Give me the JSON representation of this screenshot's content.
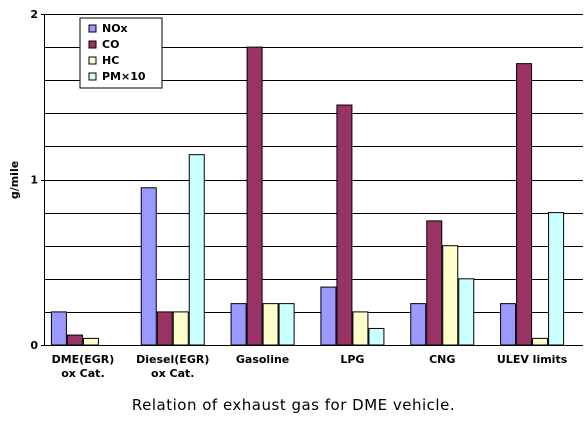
{
  "caption": "Relation of exhaust gas for DME vehicle.",
  "chart_data": {
    "type": "bar",
    "title": "",
    "ylabel": "g/mile",
    "xlabel": "",
    "ylim": [
      0,
      2
    ],
    "yticks": [
      "0",
      "1",
      "2"
    ],
    "categories": [
      [
        "DME(EGR)",
        "ox Cat."
      ],
      [
        "Diesel(EGR)",
        "ox Cat."
      ],
      [
        "Gasoline"
      ],
      [
        "LPG"
      ],
      [
        "CNG"
      ],
      [
        "ULEV limits"
      ]
    ],
    "series": [
      {
        "name": "NOx",
        "color": "#9999ff",
        "values": [
          0.2,
          0.95,
          0.25,
          0.35,
          0.25,
          0.25
        ]
      },
      {
        "name": "CO",
        "color": "#993366",
        "values": [
          0.06,
          0.2,
          1.8,
          1.45,
          0.75,
          1.7
        ]
      },
      {
        "name": "HC",
        "color": "#ffffcc",
        "values": [
          0.04,
          0.2,
          0.25,
          0.2,
          0.6,
          0.04
        ]
      },
      {
        "name": "PM×10",
        "color": "#ccffff",
        "values": [
          0,
          1.15,
          0.25,
          0.1,
          0.4,
          0.8
        ]
      }
    ],
    "grid": true,
    "legend_position": "top-left"
  }
}
